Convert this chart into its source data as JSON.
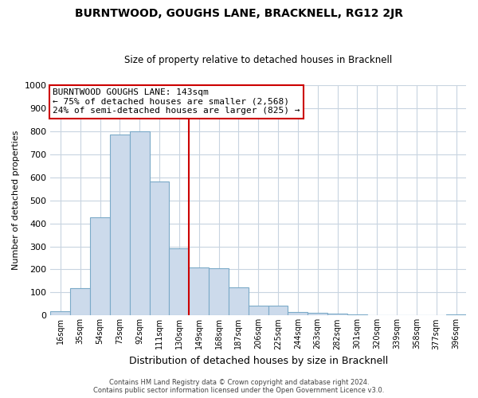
{
  "title": "BURNTWOOD, GOUGHS LANE, BRACKNELL, RG12 2JR",
  "subtitle": "Size of property relative to detached houses in Bracknell",
  "xlabel": "Distribution of detached houses by size in Bracknell",
  "ylabel": "Number of detached properties",
  "bin_labels": [
    "16sqm",
    "35sqm",
    "54sqm",
    "73sqm",
    "92sqm",
    "111sqm",
    "130sqm",
    "149sqm",
    "168sqm",
    "187sqm",
    "206sqm",
    "225sqm",
    "244sqm",
    "263sqm",
    "282sqm",
    "301sqm",
    "320sqm",
    "339sqm",
    "358sqm",
    "377sqm",
    "396sqm"
  ],
  "bar_values": [
    20,
    120,
    425,
    785,
    800,
    580,
    290,
    207,
    205,
    122,
    42,
    42,
    15,
    10,
    8,
    5,
    3,
    3,
    3,
    3,
    5
  ],
  "bar_color": "#ccdaeb",
  "bar_edge_color": "#7baac8",
  "vline_color": "#cc0000",
  "vline_x": 7,
  "annotation_title": "BURNTWOOD GOUGHS LANE: 143sqm",
  "annotation_line1": "← 75% of detached houses are smaller (2,568)",
  "annotation_line2": "24% of semi-detached houses are larger (825) →",
  "annotation_box_color": "#ffffff",
  "annotation_box_edge": "#cc0000",
  "ylim": [
    0,
    1000
  ],
  "yticks": [
    0,
    100,
    200,
    300,
    400,
    500,
    600,
    700,
    800,
    900,
    1000
  ],
  "footer_line1": "Contains HM Land Registry data © Crown copyright and database right 2024.",
  "footer_line2": "Contains public sector information licensed under the Open Government Licence v3.0.",
  "background_color": "#ffffff",
  "grid_color": "#c8d4e0",
  "title_fontsize": 10,
  "subtitle_fontsize": 8.5,
  "ylabel_fontsize": 8,
  "xlabel_fontsize": 9,
  "tick_fontsize": 7,
  "annotation_fontsize": 8,
  "footer_fontsize": 6
}
